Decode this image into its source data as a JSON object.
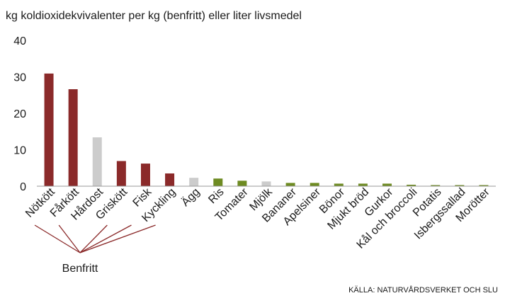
{
  "chart_data": {
    "type": "bar",
    "title": "kg koldioxidekvivalenter per kg (benfritt) eller liter livsmedel",
    "categories": [
      "Nötkött",
      "Fårkött",
      "Hårdost",
      "Griskött",
      "Fisk",
      "Kyckling",
      "Ägg",
      "Ris",
      "Tomater",
      "Mjölk",
      "Bananer",
      "Apelsiner",
      "Bönor",
      "Mjukt bröd",
      "Gurkor",
      "Kål och broccoli",
      "Potatis",
      "Isbergssallad",
      "Morötter"
    ],
    "values": [
      30.9,
      26.6,
      13.4,
      6.9,
      6.2,
      3.5,
      2.3,
      2.1,
      1.5,
      1.3,
      0.9,
      0.9,
      0.7,
      0.7,
      0.7,
      0.4,
      0.3,
      0.3,
      0.3
    ],
    "bar_colors": [
      "#8b2a2a",
      "#8b2a2a",
      "#cccccc",
      "#8b2a2a",
      "#8b2a2a",
      "#8b2a2a",
      "#cccccc",
      "#6e8b22",
      "#6e8b22",
      "#cccccc",
      "#6e8b22",
      "#6e8b22",
      "#6e8b22",
      "#6e8b22",
      "#6e8b22",
      "#6e8b22",
      "#6e8b22",
      "#6e8b22",
      "#6e8b22"
    ],
    "ylim": [
      0,
      40
    ],
    "yticks": [
      0,
      10,
      20,
      30,
      40
    ],
    "grid": false,
    "annotation": {
      "label": "Benfritt",
      "categories": [
        "Nötkött",
        "Fårkött",
        "Griskött",
        "Fisk",
        "Kyckling"
      ],
      "color": "#8b2a2a"
    },
    "source": "KÄLLA: NATURVÅRDSVERKET OCH SLU"
  }
}
